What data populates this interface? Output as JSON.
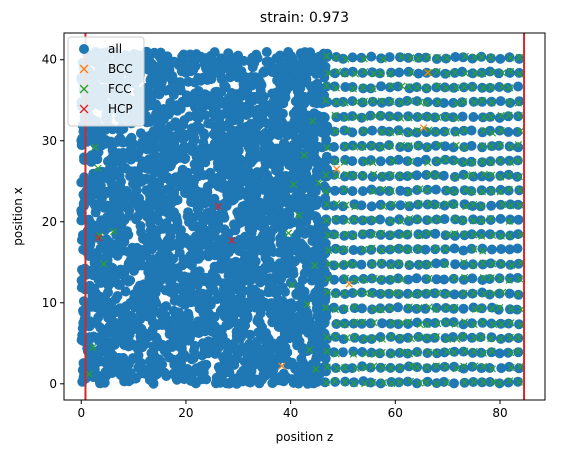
{
  "chart_data": {
    "type": "scatter",
    "title": "strain: 0.973",
    "xlabel": "position z",
    "ylabel": "position x",
    "xlim": [
      -3.3,
      88.6
    ],
    "ylim": [
      -2.0,
      43.3
    ],
    "xticks": [
      0,
      20,
      40,
      60,
      80
    ],
    "yticks": [
      0,
      10,
      20,
      30,
      40
    ],
    "grid": false,
    "legend_position": "top-left",
    "legend": [
      "all",
      "BCC",
      "FCC",
      "HCP"
    ],
    "vertical_lines": [
      {
        "x": 0.8,
        "color": "#d62728"
      },
      {
        "x": 84.6,
        "color": "#d62728"
      }
    ],
    "series": [
      {
        "name": "all",
        "marker": "circle",
        "color": "#1f77b4",
        "description": "dense cloud of atoms filling z 0–47 (disordered), crystalline rows z 47–85",
        "region_disordered": {
          "z": [
            0,
            47
          ],
          "x": [
            0,
            41
          ]
        },
        "region_crystalline": {
          "z": [
            45,
            85
          ],
          "x": [
            0,
            41.5
          ]
        }
      },
      {
        "name": "BCC",
        "marker": "x",
        "color": "#ff7f0e",
        "points": [
          [
            38.3,
            2.2
          ],
          [
            51.2,
            12.3
          ],
          [
            48.8,
            26.5
          ],
          [
            65.4,
            31.6
          ],
          [
            66.2,
            38.4
          ]
        ]
      },
      {
        "name": "FCC",
        "marker": "x",
        "color": "#2ca02c",
        "points": [
          [
            3.5,
            18.3
          ],
          [
            4.3,
            14.8
          ],
          [
            6.2,
            18.8
          ],
          [
            3.2,
            26.6
          ],
          [
            2.6,
            29.2
          ],
          [
            2.2,
            4.5
          ],
          [
            1.5,
            1.2
          ],
          [
            40.6,
            24.6
          ],
          [
            41.6,
            20.8
          ],
          [
            40.3,
            12.2
          ],
          [
            39.6,
            18.6
          ],
          [
            43.2,
            9.8
          ],
          [
            44.6,
            14.6
          ],
          [
            43.6,
            4.2
          ],
          [
            44.2,
            32.4
          ],
          [
            44.8,
            1.8
          ],
          [
            42.6,
            28.2
          ],
          [
            45.4,
            24.8
          ]
        ]
      },
      {
        "name": "HCP",
        "marker": "x",
        "color": "#d62728",
        "points": [
          [
            3.3,
            18.0
          ],
          [
            26.2,
            21.9
          ],
          [
            28.8,
            17.7
          ]
        ]
      }
    ]
  }
}
